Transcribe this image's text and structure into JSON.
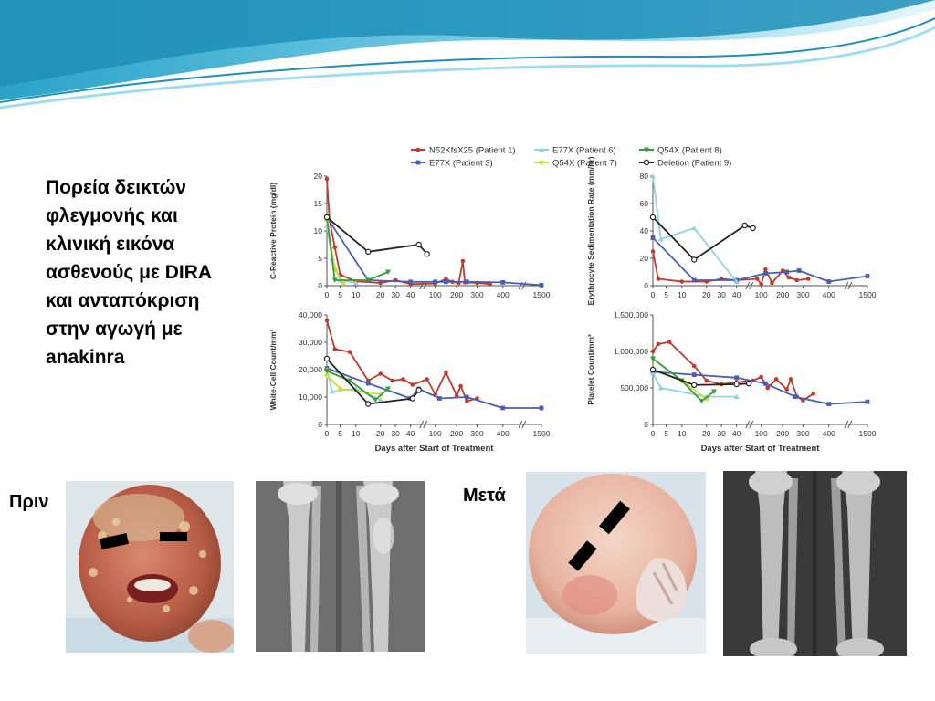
{
  "slide": {
    "title_lines": [
      "Πορεία δεικτών",
      "φλεγμονής και",
      "κλινική εικόνα",
      "ασθενούς με DIRA",
      "και ανταπόκριση",
      "στην αγωγή με",
      "anakinra"
    ],
    "before_label": "Πριν",
    "after_label": "Μετά",
    "colors": {
      "banner_dark": "#2aa3c8",
      "banner_light": "#bfe8f5"
    }
  },
  "legend": [
    {
      "name": "N52KfsX25 (Patient 1)",
      "color": "#c0392b",
      "marker": "circle"
    },
    {
      "name": "E77X (Patient 3)",
      "color": "#4a5fb0",
      "marker": "square"
    },
    {
      "name": "E77X (Patient 6)",
      "color": "#8fd3e0",
      "marker": "triangle"
    },
    {
      "name": "Q54X (Patient 7)",
      "color": "#cddc39",
      "marker": "star"
    },
    {
      "name": "Q54X (Patient 8)",
      "color": "#3a9b3a",
      "marker": "triangle-down"
    },
    {
      "name": "Deletion (Patient 9)",
      "color": "#222222",
      "marker": "open-circle"
    }
  ],
  "chart_data": [
    {
      "type": "line",
      "ylabel": "C-Reactive Protein (mg/dl)",
      "xlabel": "",
      "ylim": [
        0,
        20
      ],
      "yticks": [
        "0",
        "5",
        "10",
        "15",
        "20"
      ],
      "xticks": [
        "0",
        "5",
        "10",
        "20",
        "30",
        "40",
        "100",
        "200",
        "300",
        "400",
        "1500"
      ],
      "series": [
        {
          "name": "N52KfsX25 (Patient 1)",
          "color": "#c0392b",
          "points": [
            [
              0,
              19.5
            ],
            [
              1,
              12
            ],
            [
              3,
              7
            ],
            [
              5,
              2
            ],
            [
              10,
              0.8
            ],
            [
              20,
              0.5
            ],
            [
              30,
              1
            ],
            [
              40,
              0.3
            ],
            [
              100,
              0.4
            ],
            [
              150,
              1.2
            ],
            [
              180,
              0.7
            ],
            [
              210,
              0.5
            ],
            [
              230,
              4.5
            ],
            [
              240,
              0.6
            ],
            [
              300,
              0.5
            ],
            [
              350,
              0.3
            ]
          ]
        },
        {
          "name": "E77X (Patient 3)",
          "color": "#4a5fb0",
          "points": [
            [
              0,
              12.5
            ],
            [
              15,
              1
            ],
            [
              40,
              0.7
            ],
            [
              100,
              0.7
            ],
            [
              150,
              0.7
            ],
            [
              250,
              0.7
            ],
            [
              400,
              0.6
            ],
            [
              1500,
              0.1
            ]
          ]
        },
        {
          "name": "E77X (Patient 6)",
          "color": "#8fd3e0",
          "points": [
            [
              0,
              11
            ],
            [
              2,
              5
            ],
            [
              5,
              1
            ],
            [
              10,
              0.5
            ]
          ]
        },
        {
          "name": "Q54X (Patient 7)",
          "color": "#cddc39",
          "points": [
            [
              0,
              12
            ],
            [
              3,
              3
            ],
            [
              6,
              0.5
            ]
          ]
        },
        {
          "name": "Q54X (Patient 8)",
          "color": "#3a9b3a",
          "points": [
            [
              0,
              12.5
            ],
            [
              3,
              1
            ],
            [
              15,
              1
            ],
            [
              25,
              2.5
            ]
          ]
        },
        {
          "name": "Deletion (Patient 9)",
          "color": "#222222",
          "points": [
            [
              0,
              12.5
            ],
            [
              15,
              6.2
            ],
            [
              60,
              7.5
            ],
            [
              80,
              5.8
            ]
          ]
        }
      ]
    },
    {
      "type": "line",
      "ylabel": "Erythrocyte Sedimentation Rate (mm/hr)",
      "xlabel": "",
      "ylim": [
        0,
        80
      ],
      "yticks": [
        "0",
        "20",
        "40",
        "60",
        "80"
      ],
      "xticks": [
        "0",
        "5",
        "10",
        "20",
        "30",
        "40",
        "100",
        "200",
        "300",
        "400",
        "1500"
      ],
      "series": [
        {
          "name": "N52KfsX25 (Patient 1)",
          "color": "#c0392b",
          "points": [
            [
              0,
              25
            ],
            [
              2,
              5
            ],
            [
              10,
              3
            ],
            [
              20,
              3
            ],
            [
              30,
              5
            ],
            [
              40,
              4
            ],
            [
              90,
              5
            ],
            [
              100,
              1
            ],
            [
              120,
              12
            ],
            [
              150,
              2
            ],
            [
              200,
              11
            ],
            [
              230,
              6
            ],
            [
              270,
              4
            ],
            [
              320,
              5
            ]
          ]
        },
        {
          "name": "E77X (Patient 3)",
          "color": "#4a5fb0",
          "points": [
            [
              0,
              35
            ],
            [
              15,
              4
            ],
            [
              40,
              4
            ],
            [
              120,
              9
            ],
            [
              220,
              10
            ],
            [
              280,
              11
            ],
            [
              400,
              3
            ],
            [
              1500,
              7
            ]
          ]
        },
        {
          "name": "E77X (Patient 6)",
          "color": "#8fd3e0",
          "points": [
            [
              0,
              80
            ],
            [
              3,
              34
            ],
            [
              15,
              42
            ],
            [
              40,
              3
            ]
          ]
        },
        {
          "name": "Q54X (Patient 7)",
          "color": "#cddc39",
          "points": []
        },
        {
          "name": "Q54X (Patient 8)",
          "color": "#3a9b3a",
          "points": []
        },
        {
          "name": "Deletion (Patient 9)",
          "color": "#222222",
          "points": [
            [
              0,
              50
            ],
            [
              15,
              19
            ],
            [
              60,
              44
            ],
            [
              80,
              42
            ]
          ]
        }
      ]
    },
    {
      "type": "line",
      "ylabel": "White-Cell Count/mm³",
      "xlabel": "Days after Start of Treatment",
      "ylim": [
        0,
        40000
      ],
      "yticks": [
        "0",
        "10,000",
        "20,000",
        "30,000",
        "40,000"
      ],
      "xticks": [
        "0",
        "5",
        "10",
        "20",
        "30",
        "40",
        "100",
        "200",
        "300",
        "400",
        "1500"
      ],
      "series": [
        {
          "name": "N52KfsX25 (Patient 1)",
          "color": "#c0392b",
          "points": [
            [
              0,
              38000
            ],
            [
              3,
              27500
            ],
            [
              8,
              26500
            ],
            [
              15,
              16000
            ],
            [
              20,
              18500
            ],
            [
              28,
              16000
            ],
            [
              35,
              16500
            ],
            [
              45,
              14500
            ],
            [
              80,
              16500
            ],
            [
              100,
              11000
            ],
            [
              150,
              19000
            ],
            [
              200,
              10500
            ],
            [
              220,
              14000
            ],
            [
              250,
              8500
            ],
            [
              300,
              9500
            ]
          ]
        },
        {
          "name": "E77X (Patient 3)",
          "color": "#4a5fb0",
          "points": [
            [
              0,
              20500
            ],
            [
              15,
              15000
            ],
            [
              40,
              9500
            ],
            [
              60,
              13000
            ],
            [
              120,
              9500
            ],
            [
              250,
              10000
            ],
            [
              400,
              6000
            ],
            [
              1500,
              6000
            ]
          ]
        },
        {
          "name": "E77X (Patient 6)",
          "color": "#8fd3e0",
          "points": [
            [
              0,
              20000
            ],
            [
              2,
              12000
            ],
            [
              10,
              13000
            ],
            [
              20,
              9000
            ]
          ]
        },
        {
          "name": "Q54X (Patient 7)",
          "color": "#cddc39",
          "points": [
            [
              0,
              18000
            ],
            [
              5,
              13000
            ],
            [
              20,
              11000
            ]
          ]
        },
        {
          "name": "Q54X (Patient 8)",
          "color": "#3a9b3a",
          "points": [
            [
              0,
              19500
            ],
            [
              8,
              16000
            ],
            [
              18,
              9000
            ],
            [
              25,
              13000
            ]
          ]
        },
        {
          "name": "Deletion (Patient 9)",
          "color": "#222222",
          "points": [
            [
              0,
              24000
            ],
            [
              15,
              7500
            ],
            [
              45,
              9500
            ],
            [
              60,
              12500
            ]
          ]
        }
      ]
    },
    {
      "type": "line",
      "ylabel": "Platelet Count/mm³",
      "xlabel": "Days after Start of Treatment",
      "ylim": [
        0,
        1500000
      ],
      "yticks": [
        "0",
        "500,000",
        "1,000,000",
        "1,500,000"
      ],
      "xticks": [
        "0",
        "5",
        "10",
        "20",
        "30",
        "40",
        "100",
        "200",
        "300",
        "400",
        "1500"
      ],
      "series": [
        {
          "name": "N52KfsX25 (Patient 1)",
          "color": "#c0392b",
          "points": [
            [
              0,
              1000000
            ],
            [
              2,
              1100000
            ],
            [
              6,
              1130000
            ],
            [
              15,
              800000
            ],
            [
              20,
              600000
            ],
            [
              30,
              550000
            ],
            [
              40,
              580000
            ],
            [
              80,
              600000
            ],
            [
              100,
              650000
            ],
            [
              130,
              500000
            ],
            [
              170,
              620000
            ],
            [
              220,
              480000
            ],
            [
              240,
              620000
            ],
            [
              270,
              380000
            ],
            [
              300,
              330000
            ],
            [
              340,
              420000
            ]
          ]
        },
        {
          "name": "E77X (Patient 3)",
          "color": "#4a5fb0",
          "points": [
            [
              0,
              720000
            ],
            [
              15,
              680000
            ],
            [
              40,
              640000
            ],
            [
              120,
              560000
            ],
            [
              260,
              380000
            ],
            [
              400,
              280000
            ],
            [
              1500,
              310000
            ]
          ]
        },
        {
          "name": "E77X (Patient 6)",
          "color": "#8fd3e0",
          "points": [
            [
              0,
              700000
            ],
            [
              3,
              500000
            ],
            [
              20,
              380000
            ],
            [
              40,
              380000
            ]
          ]
        },
        {
          "name": "Q54X (Patient 7)",
          "color": "#cddc39",
          "points": [
            [
              0,
              750000
            ],
            [
              10,
              600000
            ],
            [
              20,
              350000
            ]
          ]
        },
        {
          "name": "Q54X (Patient 8)",
          "color": "#3a9b3a",
          "points": [
            [
              0,
              900000
            ],
            [
              10,
              600000
            ],
            [
              18,
              320000
            ],
            [
              25,
              450000
            ]
          ]
        },
        {
          "name": "Deletion (Patient 9)",
          "color": "#222222",
          "points": [
            [
              0,
              750000
            ],
            [
              15,
              540000
            ],
            [
              40,
              550000
            ],
            [
              70,
              560000
            ]
          ]
        }
      ]
    }
  ]
}
